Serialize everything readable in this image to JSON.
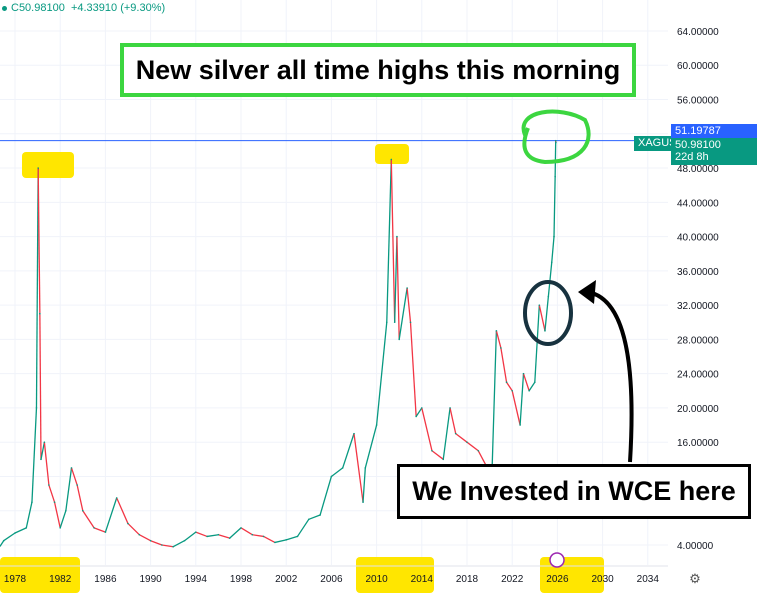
{
  "legend": {
    "close": "C50.98100",
    "change": "+4.33910 (+9.30%)"
  },
  "symbol": "XAGUSD",
  "price_tags": {
    "high": "51.19787",
    "last": "50.98100",
    "countdown": "22d 8h"
  },
  "colors": {
    "up": "#089981",
    "down": "#f23645",
    "hline": "#2962ff",
    "highlight": "#ffe600",
    "green_box": "#3cd640",
    "accent_purple": "#9c27b0"
  },
  "annotations": {
    "top_box": "New silver all time highs this morning",
    "bottom_box": "We Invested in WCE here"
  },
  "icons": {
    "settings": "gear-icon",
    "event": "lightning-icon"
  },
  "chart_data": {
    "type": "line",
    "title": "",
    "xlabel": "",
    "ylabel": "",
    "x_ticks": [
      "1978",
      "1982",
      "1986",
      "1990",
      "1994",
      "1998",
      "2002",
      "2006",
      "2010",
      "2014",
      "2018",
      "2022",
      "2026",
      "2030",
      "2034"
    ],
    "y_ticks": [
      "64.00000",
      "60.00000",
      "56.00000",
      "48.00000",
      "44.00000",
      "40.00000",
      "36.00000",
      "32.00000",
      "28.00000",
      "24.00000",
      "20.00000",
      "16.00000",
      "4.00000"
    ],
    "xlim": [
      1976.7,
      2037
    ],
    "ylim": [
      0,
      66
    ],
    "grid": true,
    "horizontal_line": 51.19787,
    "series": [
      {
        "x": [
          1976.7,
          1977,
          1978,
          1979,
          1979.5,
          1979.9,
          1980.05,
          1980.2,
          1980.3,
          1980.6,
          1981,
          1981.5,
          1982,
          1982.5,
          1983,
          1983.5,
          1984,
          1985,
          1986,
          1987,
          1988,
          1989,
          1990,
          1991,
          1992,
          1993,
          1994,
          1995,
          1996,
          1997,
          1998,
          1999,
          2000,
          2001,
          2002,
          2003,
          2004,
          2005,
          2006,
          2007,
          2008,
          2008.8,
          2009,
          2010,
          2010.9,
          2011.3,
          2011.6,
          2011.8,
          2012,
          2012.7,
          2013,
          2013.5,
          2014,
          2014.9,
          2015.9,
          2016.5,
          2017,
          2018,
          2019,
          2020.2,
          2020.6,
          2021,
          2021.5,
          2022,
          2022.7,
          2023,
          2023.5,
          2024,
          2024.4,
          2024.9,
          2025.2,
          2025.5,
          2025.7,
          2025.8,
          2025.85,
          2025.87
        ],
        "y": [
          3.9,
          4.5,
          5.4,
          6,
          9,
          20,
          48,
          31,
          14,
          16,
          11,
          9,
          6,
          8,
          13,
          11,
          8,
          6,
          5.5,
          9.5,
          6.5,
          5.2,
          4.5,
          4,
          3.8,
          4.5,
          5.5,
          5,
          5.2,
          4.8,
          6,
          5.2,
          5,
          4.3,
          4.6,
          5,
          7,
          7.5,
          12,
          13,
          17,
          9,
          13,
          18,
          30,
          49,
          30,
          40,
          28,
          34,
          30,
          19,
          20,
          15,
          14,
          20,
          17,
          16,
          15,
          12,
          29,
          27,
          23,
          22,
          18,
          24,
          22,
          23,
          32,
          29,
          33,
          37,
          40,
          47,
          51.2,
          50.981
        ]
      }
    ]
  }
}
